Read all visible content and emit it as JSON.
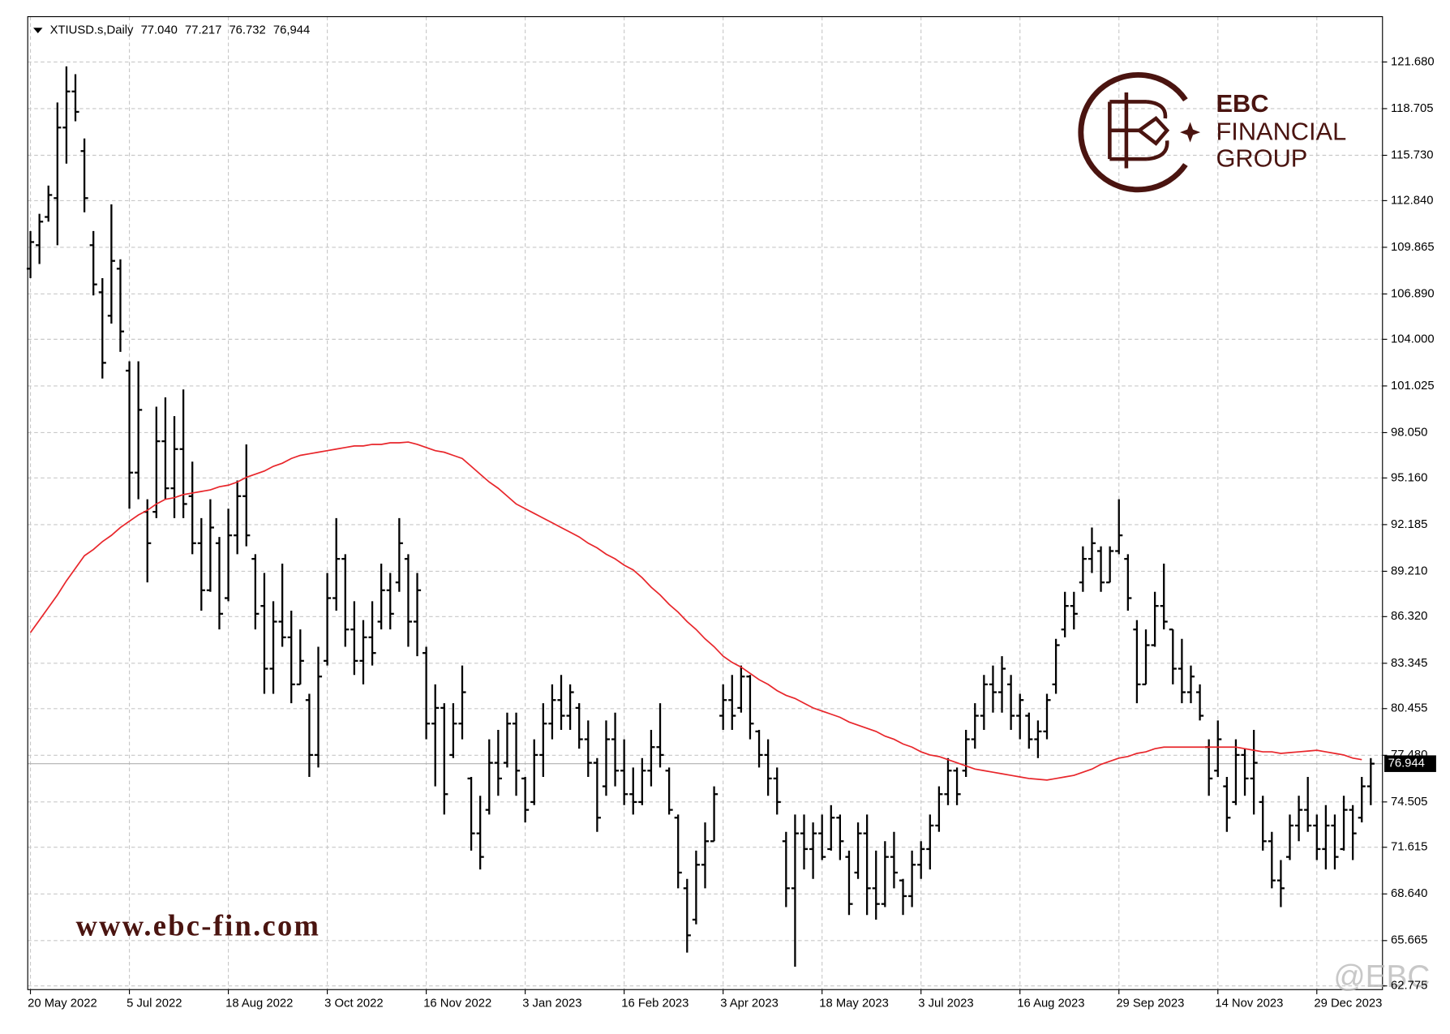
{
  "chart_data": {
    "type": "ohlc",
    "quote_name": "XTIUSD.s,Daily",
    "quote": [
      {
        "value": 77.04,
        "label": "77.040"
      },
      {
        "value": 77.217,
        "label": "77.217"
      },
      {
        "value": 76.732,
        "label": "76.732"
      },
      {
        "value": 76.944,
        "label": "76,944"
      }
    ],
    "bar_color": "#000000",
    "open": [
      108.5,
      110.0,
      111.8,
      113.0,
      117.5,
      119.8,
      116.0,
      110.0,
      107.0,
      105.5,
      108.5,
      102.0,
      95.5,
      93.0,
      93.0,
      97.5,
      94.5,
      97.0,
      94.0,
      91.0,
      88.0,
      91.0,
      87.5,
      91.5,
      94.0,
      90.0,
      87.0,
      83.0,
      86.0,
      85.0,
      82.0,
      81.0,
      77.5,
      83.5,
      87.5,
      90.0,
      85.5,
      83.5,
      85.0,
      86.0,
      88.0,
      88.5,
      90.0,
      86.0,
      84.0,
      79.5,
      80.5,
      77.5,
      79.5,
      76.0,
      72.5,
      74.0,
      77.0,
      77.0,
      79.5,
      76.0,
      74.5,
      77.5,
      79.5,
      81.0,
      80.0,
      80.5,
      78.5,
      77.0,
      75.5,
      78.5,
      76.5,
      75.0,
      74.5,
      76.5,
      78.0,
      76.5,
      73.5,
      69.0,
      67.0,
      70.5,
      72.0,
      80.0,
      81.0,
      80.5,
      82.5,
      79.0,
      77.5,
      76.0,
      72.0,
      69.0,
      72.5,
      71.5,
      72.5,
      71.5,
      73.5,
      71.0,
      70.0,
      72.5,
      69.0,
      68.0,
      71.0,
      69.5,
      68.5,
      70.5,
      71.5,
      73.0,
      75.0,
      76.5,
      76.5,
      78.5,
      80.0,
      82.0,
      81.5,
      82.0,
      80.0,
      80.0,
      78.5,
      79.0,
      82.0,
      85.5,
      87.0,
      88.5,
      90.0,
      90.5,
      88.5,
      90.5,
      90.0,
      85.5,
      82.0,
      84.5,
      87.0,
      85.5,
      83.0,
      81.5,
      81.5,
      78.0,
      76.5,
      75.5,
      74.5,
      77.5,
      76.0,
      74.5,
      72.0,
      69.5,
      71.0,
      73.0,
      74.0,
      73.0,
      71.5,
      73.0,
      71.5,
      74.0,
      73.5,
      75.5
    ],
    "high": [
      110.9,
      112.0,
      113.8,
      119.1,
      121.4,
      120.9,
      116.8,
      110.9,
      107.9,
      112.6,
      109.1,
      102.6,
      102.6,
      93.8,
      99.7,
      100.3,
      99.1,
      100.8,
      96.2,
      92.6,
      93.8,
      91.4,
      93.2,
      95.0,
      97.3,
      90.3,
      89.1,
      87.3,
      89.7,
      86.7,
      85.5,
      81.4,
      84.4,
      89.1,
      92.6,
      90.3,
      87.3,
      86.1,
      87.3,
      89.7,
      89.1,
      92.6,
      90.3,
      89.1,
      84.4,
      82.0,
      80.8,
      80.8,
      83.2,
      76.1,
      74.9,
      78.5,
      79.1,
      80.2,
      80.2,
      76.1,
      78.5,
      80.8,
      82.0,
      82.6,
      82.0,
      80.8,
      79.7,
      77.3,
      79.7,
      80.2,
      78.5,
      76.7,
      77.3,
      79.1,
      80.8,
      76.7,
      73.7,
      69.6,
      71.4,
      73.2,
      75.5,
      82.0,
      82.6,
      83.2,
      82.6,
      79.1,
      78.5,
      76.7,
      72.6,
      73.7,
      73.7,
      73.2,
      73.7,
      74.3,
      73.7,
      71.4,
      73.2,
      73.7,
      71.4,
      72.0,
      72.6,
      69.6,
      71.4,
      72.0,
      73.7,
      75.5,
      77.3,
      76.7,
      79.1,
      80.8,
      82.6,
      83.2,
      83.8,
      82.6,
      81.4,
      80.2,
      79.7,
      81.4,
      84.9,
      87.9,
      87.9,
      90.8,
      92.0,
      90.8,
      90.8,
      93.8,
      90.3,
      86.1,
      85.5,
      87.9,
      89.7,
      85.5,
      84.9,
      83.2,
      82.0,
      78.5,
      79.7,
      76.1,
      78.5,
      77.9,
      79.1,
      74.9,
      72.6,
      70.8,
      73.7,
      74.9,
      76.1,
      73.7,
      74.3,
      73.7,
      74.9,
      74.3,
      76.1,
      77.3
    ],
    "low": [
      107.9,
      108.8,
      111.5,
      110.0,
      115.2,
      117.9,
      112.1,
      106.8,
      101.5,
      105.0,
      103.2,
      93.2,
      93.8,
      88.5,
      92.6,
      93.8,
      92.6,
      92.6,
      90.3,
      86.7,
      87.9,
      85.5,
      87.3,
      90.3,
      90.8,
      85.5,
      81.4,
      81.4,
      84.4,
      80.8,
      82.0,
      76.1,
      76.7,
      83.2,
      86.7,
      84.4,
      82.6,
      82.0,
      83.2,
      85.5,
      85.5,
      87.9,
      84.4,
      83.8,
      78.5,
      75.5,
      73.7,
      77.3,
      78.5,
      71.4,
      70.2,
      73.7,
      74.9,
      76.7,
      74.9,
      73.2,
      74.3,
      76.1,
      78.5,
      79.1,
      79.1,
      77.9,
      76.1,
      72.6,
      74.9,
      75.5,
      74.3,
      73.7,
      74.3,
      75.5,
      76.7,
      73.7,
      69.0,
      64.9,
      66.7,
      69.0,
      72.0,
      79.1,
      79.1,
      80.2,
      78.5,
      76.7,
      74.9,
      73.7,
      67.8,
      64.0,
      70.2,
      69.6,
      70.8,
      71.4,
      70.8,
      67.3,
      69.6,
      67.3,
      67.0,
      67.8,
      69.0,
      67.3,
      67.8,
      69.6,
      70.2,
      72.6,
      74.3,
      74.3,
      76.1,
      77.9,
      79.1,
      80.2,
      80.2,
      79.1,
      78.5,
      77.9,
      77.3,
      78.5,
      81.4,
      85.0,
      85.5,
      87.9,
      89.1,
      87.9,
      88.5,
      90.3,
      86.7,
      80.8,
      82.0,
      84.4,
      85.5,
      82.0,
      80.8,
      80.8,
      79.7,
      74.9,
      76.1,
      72.6,
      74.3,
      74.9,
      73.7,
      71.4,
      69.0,
      67.8,
      70.8,
      72.0,
      72.6,
      70.8,
      70.2,
      70.2,
      71.4,
      70.8,
      73.2,
      74.3
    ],
    "close": [
      110.2,
      111.5,
      113.2,
      117.5,
      119.8,
      118.5,
      113.0,
      107.5,
      102.5,
      109.0,
      104.5,
      95.5,
      99.5,
      91.0,
      97.5,
      94.5,
      97.0,
      93.5,
      91.0,
      88.0,
      92.0,
      86.5,
      91.5,
      94.0,
      91.5,
      86.5,
      83.0,
      86.0,
      85.0,
      82.0,
      83.5,
      77.5,
      82.5,
      87.5,
      90.0,
      85.5,
      83.5,
      85.0,
      84.0,
      88.0,
      86.5,
      91.0,
      86.0,
      88.0,
      79.5,
      80.5,
      75.0,
      79.5,
      81.5,
      72.5,
      71.0,
      77.0,
      76.0,
      79.5,
      76.5,
      74.0,
      77.5,
      79.5,
      81.0,
      80.0,
      81.5,
      78.5,
      77.0,
      73.5,
      78.5,
      76.5,
      75.0,
      74.5,
      76.5,
      78.0,
      77.5,
      74.0,
      70.0,
      66.0,
      70.5,
      72.0,
      75.0,
      81.0,
      80.0,
      82.5,
      79.5,
      77.5,
      76.0,
      74.5,
      69.0,
      72.5,
      71.5,
      72.5,
      71.0,
      73.5,
      72.0,
      68.0,
      72.5,
      69.0,
      68.0,
      71.0,
      70.0,
      68.5,
      70.5,
      71.5,
      73.0,
      75.0,
      76.5,
      75.0,
      78.5,
      80.0,
      82.0,
      81.5,
      83.0,
      80.0,
      81.0,
      78.5,
      79.0,
      81.0,
      84.5,
      87.0,
      86.5,
      90.0,
      91.0,
      88.5,
      90.5,
      91.5,
      87.5,
      82.0,
      84.5,
      87.0,
      86.0,
      83.0,
      81.5,
      82.5,
      80.0,
      76.0,
      78.5,
      73.5,
      77.5,
      76.0,
      77.0,
      72.0,
      69.5,
      69.0,
      73.0,
      74.0,
      73.0,
      71.5,
      73.0,
      71.0,
      74.0,
      72.5,
      75.5,
      76.944
    ],
    "ma": {
      "color": "#e8262b",
      "values": [
        85.3,
        86.1,
        86.9,
        87.7,
        88.6,
        89.4,
        90.2,
        90.6,
        91.1,
        91.5,
        92.0,
        92.4,
        92.8,
        93.1,
        93.5,
        93.8,
        93.9,
        94.1,
        94.2,
        94.3,
        94.4,
        94.6,
        94.7,
        94.9,
        95.2,
        95.4,
        95.6,
        95.9,
        96.1,
        96.4,
        96.6,
        96.7,
        96.8,
        96.9,
        97.0,
        97.1,
        97.2,
        97.2,
        97.3,
        97.3,
        97.4,
        97.4,
        97.45,
        97.3,
        97.1,
        96.9,
        96.8,
        96.6,
        96.4,
        95.9,
        95.4,
        94.9,
        94.5,
        94.0,
        93.5,
        93.2,
        92.9,
        92.6,
        92.3,
        92.0,
        91.7,
        91.4,
        91.0,
        90.7,
        90.3,
        90.0,
        89.6,
        89.3,
        88.8,
        88.2,
        87.7,
        87.1,
        86.6,
        86.0,
        85.5,
        84.9,
        84.4,
        83.8,
        83.4,
        83.1,
        82.7,
        82.3,
        82.0,
        81.6,
        81.3,
        81.1,
        80.8,
        80.5,
        80.3,
        80.1,
        79.9,
        79.6,
        79.4,
        79.2,
        79.0,
        78.7,
        78.5,
        78.2,
        78.0,
        77.7,
        77.5,
        77.4,
        77.2,
        77.0,
        76.8,
        76.6,
        76.5,
        76.4,
        76.3,
        76.2,
        76.1,
        76.0,
        75.95,
        75.9,
        76.0,
        76.1,
        76.2,
        76.4,
        76.6,
        76.9,
        77.1,
        77.3,
        77.4,
        77.6,
        77.7,
        77.9,
        78.0,
        78.0,
        78.0,
        78.0,
        78.0,
        78.0,
        78.0,
        78.0,
        78.0,
        77.9,
        77.8,
        77.7,
        77.7,
        77.6,
        77.65,
        77.7,
        77.75,
        77.8,
        77.7,
        77.6,
        77.5,
        77.3,
        77.2
      ]
    },
    "current_price": {
      "value": 76.944,
      "label": "76.944"
    },
    "ylim": [
      62.54,
      124.57
    ],
    "yticks": [
      {
        "value": 121.68,
        "label": "121.680"
      },
      {
        "value": 118.705,
        "label": "118.705"
      },
      {
        "value": 115.73,
        "label": "115.730"
      },
      {
        "value": 112.84,
        "label": "112.840"
      },
      {
        "value": 109.865,
        "label": "109.865"
      },
      {
        "value": 106.89,
        "label": "106.890"
      },
      {
        "value": 104,
        "label": "104.000"
      },
      {
        "value": 101.025,
        "label": "101.025"
      },
      {
        "value": 98.05,
        "label": "98.050"
      },
      {
        "value": 95.16,
        "label": "95.160"
      },
      {
        "value": 92.185,
        "label": "92.185"
      },
      {
        "value": 89.21,
        "label": "89.210"
      },
      {
        "value": 86.32,
        "label": "86.320"
      },
      {
        "value": 83.345,
        "label": "83.345"
      },
      {
        "value": 80.455,
        "label": "80.455"
      },
      {
        "value": 77.48,
        "label": "77.480"
      },
      {
        "value": 74.505,
        "label": "74.505"
      },
      {
        "value": 71.615,
        "label": "71.615"
      },
      {
        "value": 68.64,
        "label": "68.640"
      },
      {
        "value": 65.665,
        "label": "65.665"
      },
      {
        "value": 62.775,
        "label": "62.775"
      }
    ],
    "xlim": [
      -0.3,
      150.3
    ],
    "xticks": [
      {
        "value": 0,
        "label": "20 May 2022"
      },
      {
        "value": 11,
        "label": "5 Jul 2022"
      },
      {
        "value": 22,
        "label": "18 Aug 2022"
      },
      {
        "value": 33,
        "label": "3 Oct 2022"
      },
      {
        "value": 44,
        "label": "16 Nov 2022"
      },
      {
        "value": 55,
        "label": "3 Jan 2023"
      },
      {
        "value": 66,
        "label": "16 Feb 2023"
      },
      {
        "value": 77,
        "label": "3 Apr 2023"
      },
      {
        "value": 88,
        "label": "18 May 2023"
      },
      {
        "value": 99,
        "label": "3 Jul 2023"
      },
      {
        "value": 110,
        "label": "16 Aug 2023"
      },
      {
        "value": 121,
        "label": "29 Sep 2023"
      },
      {
        "value": 132,
        "label": "14 Nov 2023"
      },
      {
        "value": 143,
        "label": "29 Dec 2023"
      }
    ],
    "grid": true
  },
  "branding": {
    "logo_name": "EBC",
    "logo_line1": "FINANCIAL",
    "logo_line2": "GROUP",
    "website": "www.ebc-fin.com",
    "handle": "@EBC"
  }
}
